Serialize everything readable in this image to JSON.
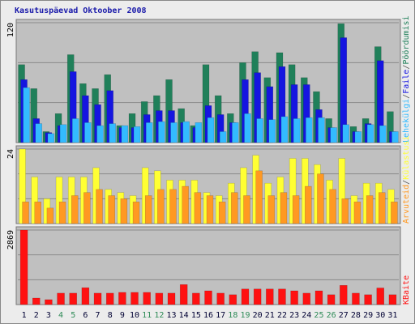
{
  "chart_data": [
    {
      "type": "bar",
      "title": "Kasutuspäevad Oktoober 2008",
      "categories": [
        "1",
        "2",
        "3",
        "4",
        "5",
        "6",
        "7",
        "8",
        "9",
        "10",
        "11",
        "12",
        "13",
        "14",
        "15",
        "16",
        "17",
        "18",
        "19",
        "20",
        "21",
        "22",
        "23",
        "24",
        "25",
        "26",
        "27",
        "28",
        "29",
        "30",
        "31"
      ],
      "category_colors": [
        "#000033",
        "#000033",
        "#000033",
        "#2e8b57",
        "#2e8b57",
        "#000033",
        "#000033",
        "#000033",
        "#000033",
        "#000033",
        "#2e8b57",
        "#2e8b57",
        "#000033",
        "#000033",
        "#000033",
        "#000033",
        "#000033",
        "#2e8b57",
        "#2e8b57",
        "#000033",
        "#000033",
        "#000033",
        "#000033",
        "#000033",
        "#2e8b57",
        "#2e8b57",
        "#000033",
        "#000033",
        "#000033",
        "#000033",
        "#000033"
      ],
      "legend_separator": "/",
      "ylim": [
        0,
        120
      ],
      "yticks": [
        120
      ],
      "series": [
        {
          "name": "Pöördumisi",
          "color": "#20805a",
          "values": [
            78,
            54,
            11,
            29,
            88,
            59,
            54,
            68,
            17,
            29,
            41,
            47,
            63,
            34,
            17,
            78,
            47,
            29,
            80,
            91,
            65,
            90,
            78,
            65,
            51,
            24,
            119,
            16,
            24,
            96,
            31
          ]
        },
        {
          "name": "Faile",
          "color": "#1515e0",
          "values": [
            63,
            24,
            10,
            17,
            71,
            47,
            38,
            52,
            15,
            15,
            28,
            32,
            32,
            20,
            15,
            37,
            28,
            20,
            63,
            70,
            56,
            76,
            58,
            58,
            33,
            15,
            105,
            11,
            19,
            82,
            11
          ]
        },
        {
          "name": "Lehekülgi",
          "color": "#33bbff",
          "values": [
            55,
            19,
            9,
            18,
            24,
            20,
            17,
            19,
            17,
            16,
            20,
            21,
            20,
            21,
            20,
            25,
            11,
            20,
            29,
            24,
            23,
            26,
            24,
            25,
            25,
            15,
            18,
            11,
            18,
            17,
            11
          ]
        }
      ]
    },
    {
      "type": "bar",
      "ylim": [
        0,
        24
      ],
      "yticks": [
        24
      ],
      "series": [
        {
          "name": "Külastusi",
          "color": "#ffff33",
          "values": [
            24,
            15,
            8,
            15,
            15,
            15,
            18,
            11,
            10,
            9,
            18,
            17,
            14,
            14,
            14,
            10,
            9,
            13,
            18,
            22,
            13,
            15,
            21,
            21,
            19,
            14,
            21,
            9,
            13,
            13,
            11
          ]
        },
        {
          "name": "Arvuteid",
          "color": "#ff9922",
          "values": [
            7,
            7,
            5,
            7,
            9,
            10,
            11,
            9,
            8,
            7,
            9,
            11,
            11,
            12,
            10,
            9,
            7,
            10,
            9,
            17,
            9,
            10,
            9,
            12,
            16,
            11,
            8,
            7,
            9,
            10,
            7
          ]
        }
      ]
    },
    {
      "type": "bar",
      "ylim": [
        0,
        2869
      ],
      "yticks": [
        2869
      ],
      "series": [
        {
          "name": "KBaite",
          "color": "#ff1111",
          "values": [
            2869,
            250,
            190,
            440,
            440,
            650,
            440,
            440,
            470,
            470,
            470,
            440,
            440,
            770,
            440,
            530,
            440,
            380,
            600,
            600,
            600,
            600,
            530,
            440,
            530,
            380,
            740,
            440,
            380,
            640,
            380
          ]
        }
      ]
    }
  ]
}
